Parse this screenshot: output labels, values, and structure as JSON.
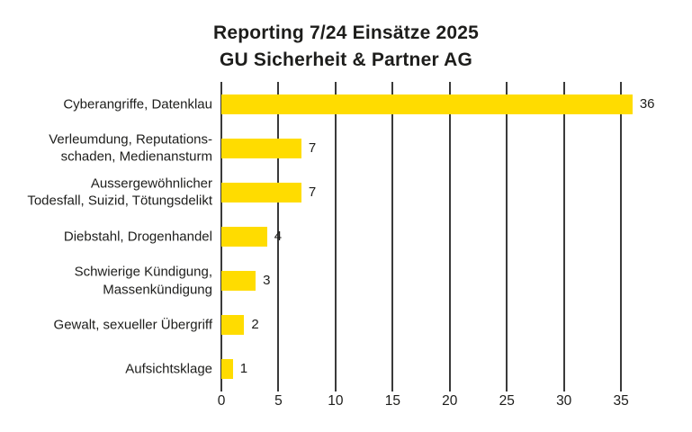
{
  "title": {
    "line1": "Reporting 7/24 Einsätze 2025",
    "line2": "GU Sicherheit & Partner AG"
  },
  "colors": {
    "background": "#FFFFFF",
    "text": "#1D1D1B",
    "bar": "#FFDC00",
    "gridline": "#3A3A3A"
  },
  "chart_data": {
    "type": "bar",
    "orientation": "horizontal",
    "title": "Reporting 7/24 Einsätze 2025 — GU Sicherheit & Partner AG",
    "categories": [
      [
        "Cyberangriffe, Datenklau"
      ],
      [
        "Verleumdung, Reputations-",
        "schaden, Medienansturm"
      ],
      [
        "Aussergewöhnlicher",
        "Todesfall, Suizid, Tötungsdelikt"
      ],
      [
        "Diebstahl, Drogenhandel"
      ],
      [
        "Schwierige Kündigung,",
        "Massenkündigung"
      ],
      [
        "Gewalt, sexueller Übergriff"
      ],
      [
        "Aufsichtsklage"
      ]
    ],
    "values": [
      36,
      7,
      7,
      4,
      3,
      2,
      1
    ],
    "value_labels": [
      "36",
      "7",
      "7",
      "4",
      "3",
      "2",
      "1"
    ],
    "x_ticks": [
      "0",
      "5",
      "10",
      "15",
      "20",
      "25",
      "30",
      "35"
    ],
    "xlim": [
      0,
      38
    ],
    "xlabel": "",
    "ylabel": "",
    "grid": true,
    "legend": false
  }
}
